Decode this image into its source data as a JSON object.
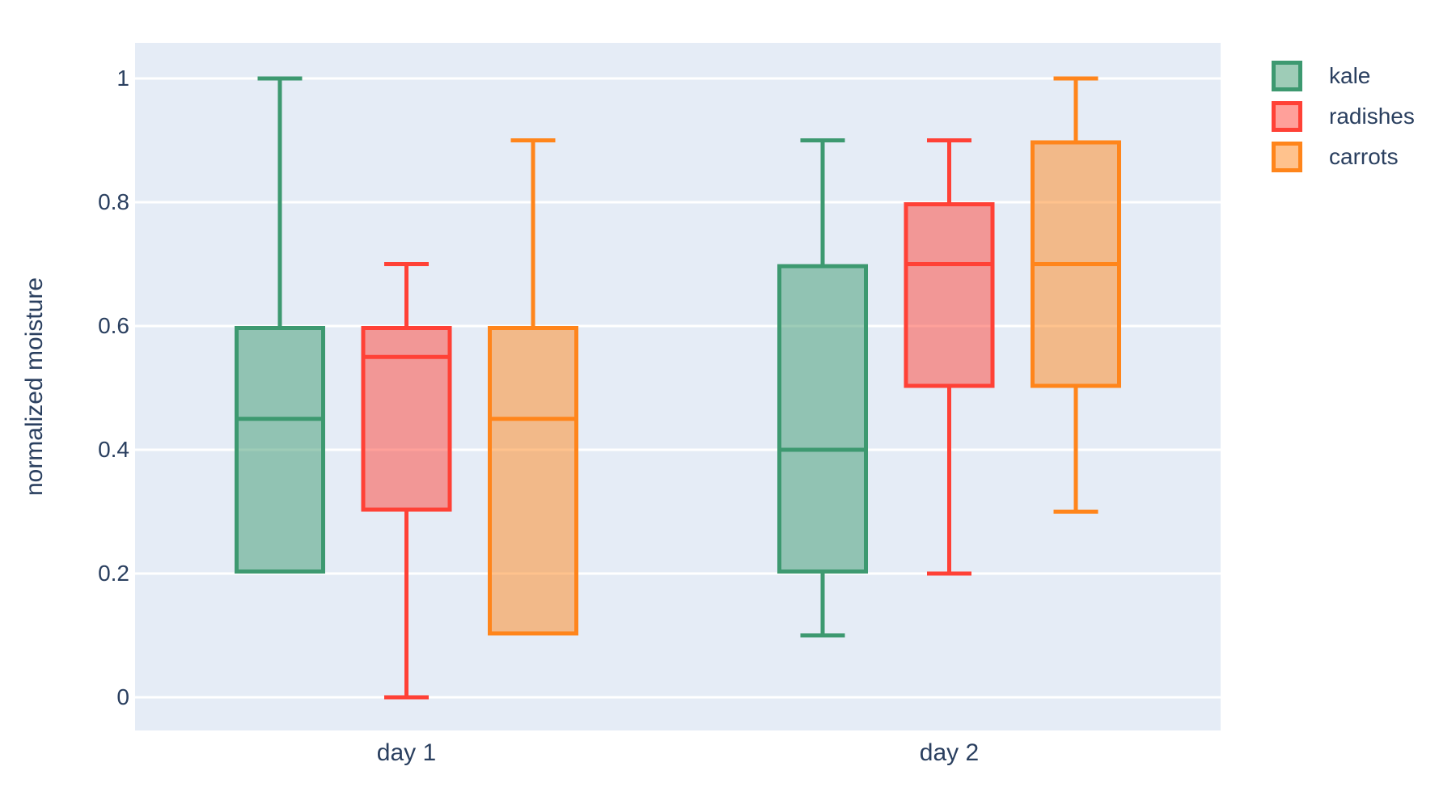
{
  "chart_data": {
    "type": "box",
    "title": "",
    "xlabel": "",
    "ylabel": "normalized moisture",
    "categories": [
      "day 1",
      "day 2"
    ],
    "ylim": [
      0,
      1
    ],
    "grid": true,
    "legend_position": "top-right",
    "plot_background": "#E5ECF6",
    "gridline_color": "#FFFFFF",
    "text_color": "#2A3F5F",
    "yticks": [
      {
        "value": 0,
        "label": "0"
      },
      {
        "value": 0.2,
        "label": "0.2"
      },
      {
        "value": 0.4,
        "label": "0.4"
      },
      {
        "value": 0.6,
        "label": "0.6"
      },
      {
        "value": 0.8,
        "label": "0.8"
      },
      {
        "value": 1,
        "label": "1"
      }
    ],
    "series": [
      {
        "name": "kale",
        "color": "#3D9970",
        "boxes": [
          {
            "category": "day 1",
            "min": 0.2,
            "q1": 0.2,
            "median": 0.45,
            "q3": 0.6,
            "max": 1.0
          },
          {
            "category": "day 2",
            "min": 0.1,
            "q1": 0.2,
            "median": 0.4,
            "q3": 0.7,
            "max": 0.9
          }
        ]
      },
      {
        "name": "radishes",
        "color": "#FF4136",
        "boxes": [
          {
            "category": "day 1",
            "min": 0.0,
            "q1": 0.3,
            "median": 0.55,
            "q3": 0.6,
            "max": 0.7
          },
          {
            "category": "day 2",
            "min": 0.2,
            "q1": 0.5,
            "median": 0.7,
            "q3": 0.8,
            "max": 0.9
          }
        ]
      },
      {
        "name": "carrots",
        "color": "#FF851B",
        "boxes": [
          {
            "category": "day 1",
            "min": 0.1,
            "q1": 0.1,
            "median": 0.45,
            "q3": 0.6,
            "max": 0.9
          },
          {
            "category": "day 2",
            "min": 0.3,
            "q1": 0.5,
            "median": 0.7,
            "q3": 0.9,
            "max": 1.0
          }
        ]
      }
    ]
  }
}
